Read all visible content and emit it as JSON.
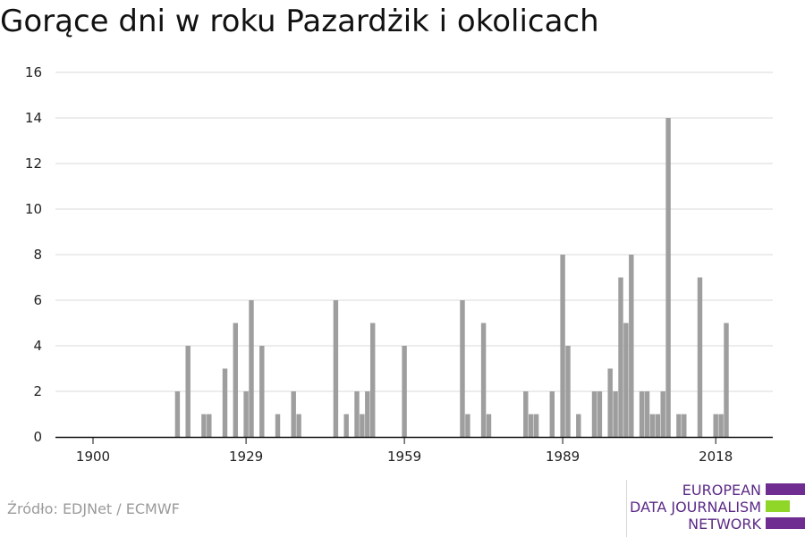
{
  "title": "Gorące dni w roku Pazardżik i okolicach",
  "source": "Źródło: EDJNet / ECMWF",
  "logo": {
    "line1": "EUROPEAN",
    "line2": "DATA JOURNALISM",
    "line3": "NETWORK",
    "colors": [
      "#6f2c91",
      "#8fd629"
    ]
  },
  "colors": {
    "bar": "#9e9e9e",
    "grid": "#d9d9d9",
    "axis": "#111111"
  },
  "chart_data": {
    "type": "bar",
    "title": "Gorące dni w roku Pazardżik i okolicach",
    "xlabel": "",
    "ylabel": "",
    "ylim": [
      0,
      16
    ],
    "yticks": [
      0,
      2,
      4,
      6,
      8,
      10,
      12,
      14,
      16
    ],
    "xticks": [
      1900,
      1929,
      1959,
      1989,
      2018
    ],
    "grid": true,
    "legend": "none",
    "x": [
      1900,
      1901,
      1902,
      1903,
      1904,
      1905,
      1906,
      1907,
      1908,
      1909,
      1910,
      1911,
      1912,
      1913,
      1914,
      1915,
      1916,
      1917,
      1918,
      1919,
      1920,
      1921,
      1922,
      1923,
      1924,
      1925,
      1926,
      1927,
      1928,
      1929,
      1930,
      1931,
      1932,
      1933,
      1934,
      1935,
      1936,
      1937,
      1938,
      1939,
      1940,
      1941,
      1942,
      1943,
      1944,
      1945,
      1946,
      1947,
      1948,
      1949,
      1950,
      1951,
      1952,
      1953,
      1954,
      1955,
      1956,
      1957,
      1958,
      1959,
      1960,
      1961,
      1962,
      1963,
      1964,
      1965,
      1966,
      1967,
      1968,
      1969,
      1970,
      1971,
      1972,
      1973,
      1974,
      1975,
      1976,
      1977,
      1978,
      1979,
      1980,
      1981,
      1982,
      1983,
      1984,
      1985,
      1986,
      1987,
      1988,
      1989,
      1990,
      1991,
      1992,
      1993,
      1994,
      1995,
      1996,
      1997,
      1998,
      1999,
      2000,
      2001,
      2002,
      2003,
      2004,
      2005,
      2006,
      2007,
      2008,
      2009,
      2010,
      2011,
      2012,
      2013,
      2014,
      2015,
      2016,
      2017,
      2018,
      2019,
      2020,
      2021
    ],
    "values": [
      0,
      0,
      0,
      0,
      0,
      0,
      0,
      0,
      0,
      0,
      0,
      0,
      0,
      0,
      0,
      0,
      2,
      0,
      4,
      0,
      0,
      1,
      1,
      0,
      0,
      3,
      0,
      5,
      0,
      2,
      6,
      0,
      4,
      0,
      0,
      1,
      0,
      0,
      2,
      1,
      0,
      0,
      0,
      0,
      0,
      0,
      6,
      0,
      1,
      0,
      2,
      1,
      2,
      5,
      0,
      0,
      0,
      0,
      0,
      4,
      0,
      0,
      0,
      0,
      0,
      0,
      0,
      0,
      0,
      0,
      6,
      1,
      0,
      0,
      5,
      1,
      0,
      0,
      0,
      0,
      0,
      0,
      2,
      1,
      1,
      0,
      0,
      2,
      0,
      8,
      4,
      0,
      1,
      0,
      0,
      2,
      2,
      0,
      3,
      2,
      7,
      5,
      8,
      0,
      2,
      2,
      1,
      1,
      2,
      14,
      0,
      1,
      1,
      0,
      0,
      7,
      0,
      0,
      1,
      1,
      5,
      0
    ]
  }
}
